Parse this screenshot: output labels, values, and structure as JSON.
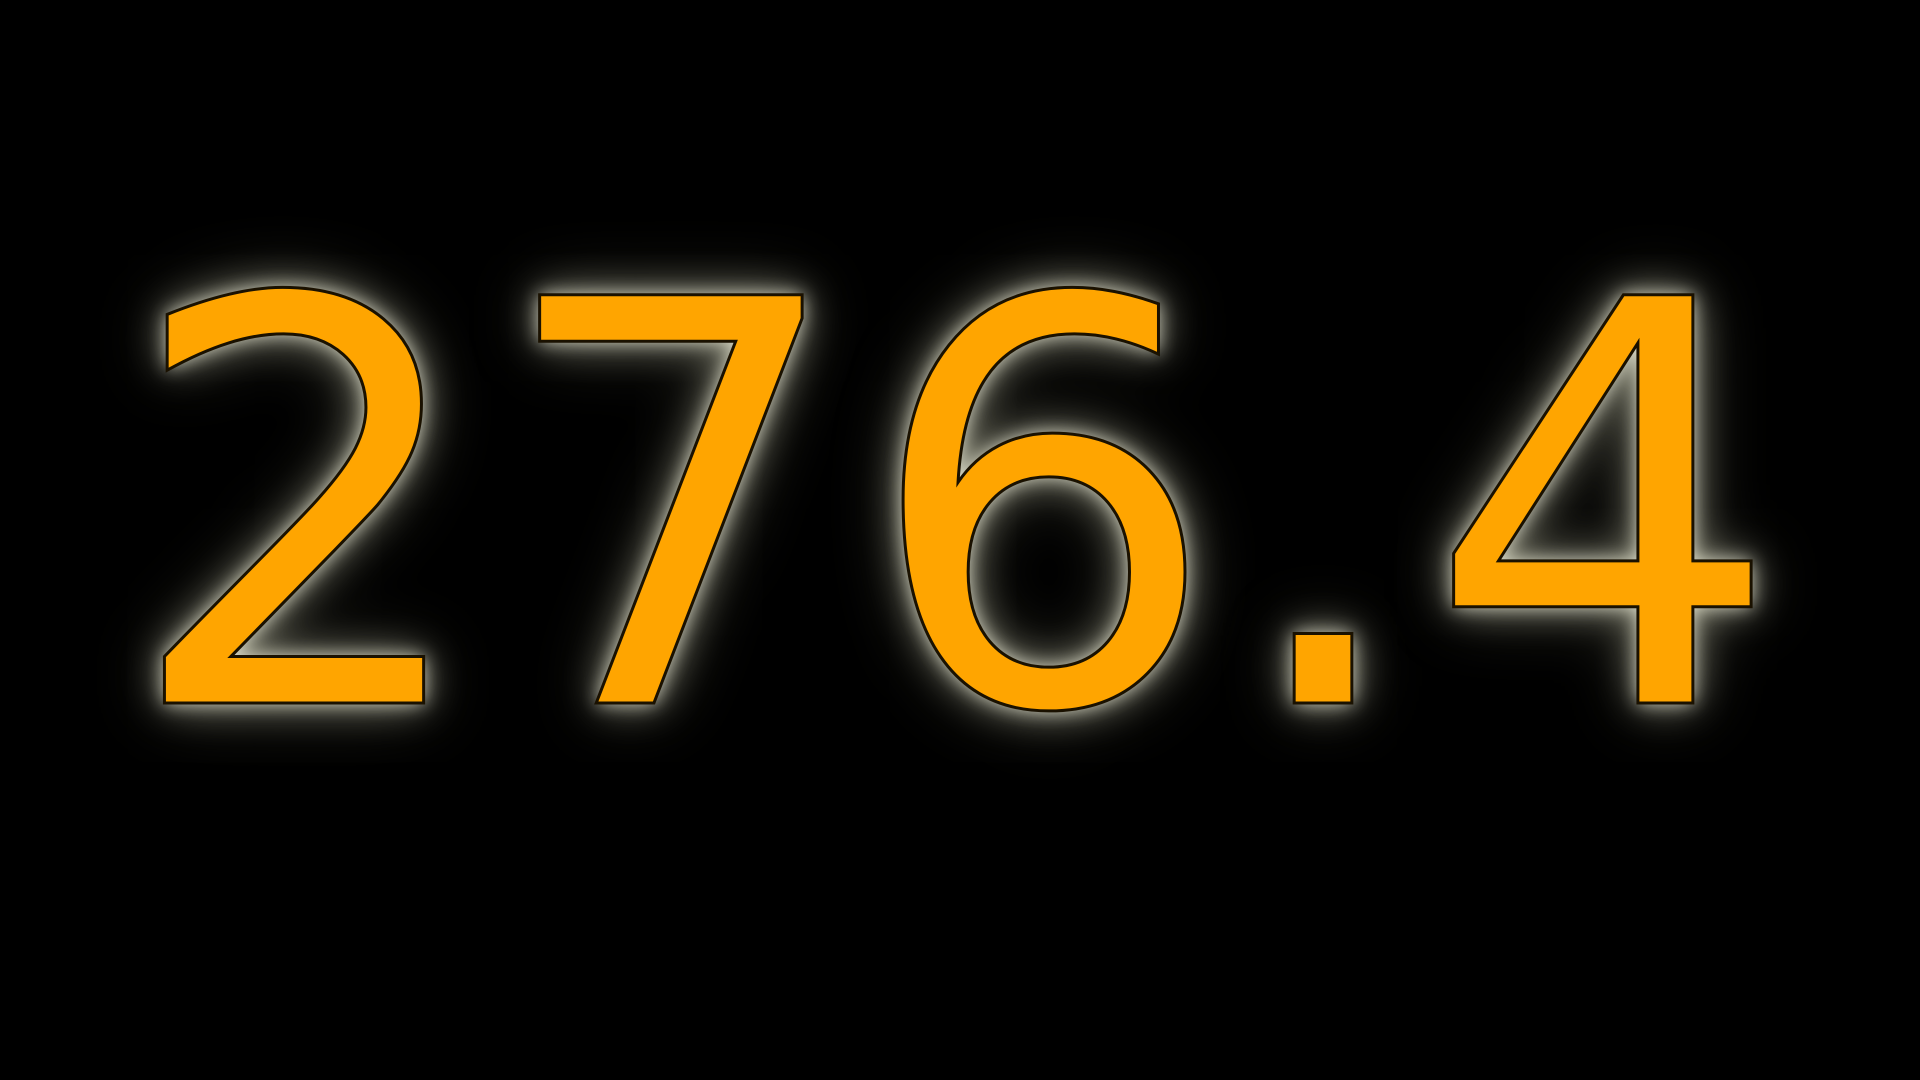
{
  "display": {
    "value": "276.4",
    "text_color": "#FFA500",
    "outline_color": "#1A1100",
    "glow_color": "#F0F0D8",
    "background_color": "#000000"
  }
}
